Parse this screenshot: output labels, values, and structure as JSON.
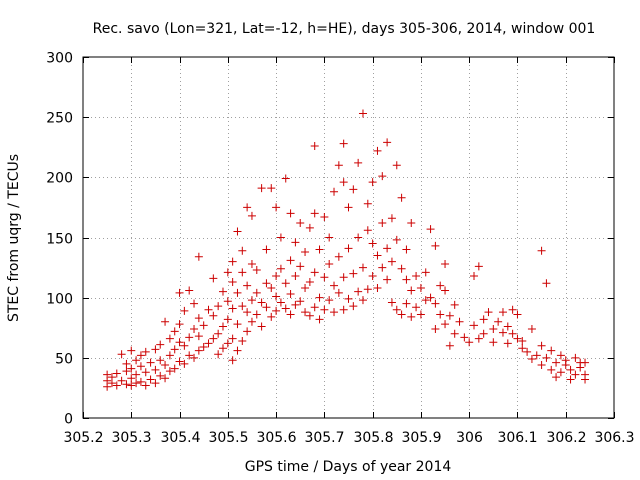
{
  "chart_data": {
    "type": "scatter",
    "title": "Rec. savo (Lon=321, Lat=-12, h=HE), days 305-306, 2014, window 001",
    "xlabel": "GPS time / Days of year 2014",
    "ylabel": "STEC from uqrg / TECUs",
    "xlim": [
      305.2,
      306.3
    ],
    "ylim": [
      0,
      300
    ],
    "x_ticks": [
      305.2,
      305.3,
      305.4,
      305.5,
      305.6,
      305.7,
      305.8,
      305.9,
      306,
      306.1,
      306.2,
      306.3
    ],
    "x_tick_labels": [
      "305.2",
      "305.3",
      "305.4",
      "305.5",
      "305.6",
      "305.7",
      "305.8",
      "305.9",
      "306",
      "306.1",
      "306.2",
      "306.3"
    ],
    "y_ticks": [
      0,
      50,
      100,
      150,
      200,
      250,
      300
    ],
    "y_tick_labels": [
      "0",
      "50",
      "100",
      "150",
      "200",
      "250",
      "300"
    ],
    "grid": true,
    "marker": "plus",
    "color": "#cc0000",
    "series": [
      {
        "points": [
          [
            305.25,
            26
          ],
          [
            305.25,
            31
          ],
          [
            305.25,
            36
          ],
          [
            305.26,
            29
          ],
          [
            305.26,
            34
          ],
          [
            305.27,
            27
          ],
          [
            305.27,
            37
          ],
          [
            305.28,
            53
          ],
          [
            305.28,
            31
          ],
          [
            305.29,
            39
          ],
          [
            305.29,
            28
          ],
          [
            305.29,
            45
          ],
          [
            305.3,
            27
          ],
          [
            305.3,
            33
          ],
          [
            305.3,
            41
          ],
          [
            305.3,
            56
          ],
          [
            305.31,
            29
          ],
          [
            305.31,
            36
          ],
          [
            305.31,
            48
          ],
          [
            305.32,
            30
          ],
          [
            305.32,
            43
          ],
          [
            305.32,
            52
          ],
          [
            305.33,
            27
          ],
          [
            305.33,
            38
          ],
          [
            305.33,
            55
          ],
          [
            305.34,
            32
          ],
          [
            305.34,
            46
          ],
          [
            305.35,
            29
          ],
          [
            305.35,
            40
          ],
          [
            305.35,
            57
          ],
          [
            305.36,
            35
          ],
          [
            305.36,
            48
          ],
          [
            305.36,
            61
          ],
          [
            305.37,
            33
          ],
          [
            305.37,
            44
          ],
          [
            305.37,
            80
          ],
          [
            305.38,
            39
          ],
          [
            305.38,
            52
          ],
          [
            305.38,
            66
          ],
          [
            305.39,
            41
          ],
          [
            305.39,
            57
          ],
          [
            305.39,
            72
          ],
          [
            305.4,
            47
          ],
          [
            305.4,
            63
          ],
          [
            305.4,
            78
          ],
          [
            305.4,
            104
          ],
          [
            305.41,
            45
          ],
          [
            305.41,
            60
          ],
          [
            305.41,
            89
          ],
          [
            305.42,
            52
          ],
          [
            305.42,
            67
          ],
          [
            305.42,
            106
          ],
          [
            305.43,
            50
          ],
          [
            305.43,
            74
          ],
          [
            305.43,
            95
          ],
          [
            305.44,
            56
          ],
          [
            305.44,
            68
          ],
          [
            305.44,
            83
          ],
          [
            305.44,
            134
          ],
          [
            305.45,
            59
          ],
          [
            305.45,
            77
          ],
          [
            305.46,
            62
          ],
          [
            305.46,
            90
          ],
          [
            305.47,
            66
          ],
          [
            305.47,
            85
          ],
          [
            305.47,
            116
          ],
          [
            305.48,
            53
          ],
          [
            305.48,
            70
          ],
          [
            305.48,
            93
          ],
          [
            305.49,
            58
          ],
          [
            305.49,
            76
          ],
          [
            305.49,
            105
          ],
          [
            305.5,
            62
          ],
          [
            305.5,
            82
          ],
          [
            305.5,
            97
          ],
          [
            305.5,
            121
          ],
          [
            305.51,
            48
          ],
          [
            305.51,
            66
          ],
          [
            305.51,
            91
          ],
          [
            305.51,
            113
          ],
          [
            305.51,
            130
          ],
          [
            305.52,
            56
          ],
          [
            305.52,
            78
          ],
          [
            305.52,
            104
          ],
          [
            305.52,
            155
          ],
          [
            305.53,
            64
          ],
          [
            305.53,
            93
          ],
          [
            305.53,
            121
          ],
          [
            305.53,
            139
          ],
          [
            305.54,
            72
          ],
          [
            305.54,
            88
          ],
          [
            305.54,
            110
          ],
          [
            305.54,
            175
          ],
          [
            305.55,
            80
          ],
          [
            305.55,
            98
          ],
          [
            305.55,
            128
          ],
          [
            305.55,
            168
          ],
          [
            305.56,
            86
          ],
          [
            305.56,
            104
          ],
          [
            305.56,
            123
          ],
          [
            305.57,
            76
          ],
          [
            305.57,
            96
          ],
          [
            305.57,
            191
          ],
          [
            305.58,
            92
          ],
          [
            305.58,
            112
          ],
          [
            305.58,
            140
          ],
          [
            305.59,
            84
          ],
          [
            305.59,
            108
          ],
          [
            305.59,
            191
          ],
          [
            305.6,
            89
          ],
          [
            305.6,
            101
          ],
          [
            305.6,
            118
          ],
          [
            305.6,
            175
          ],
          [
            305.61,
            96
          ],
          [
            305.61,
            124
          ],
          [
            305.61,
            150
          ],
          [
            305.62,
            91
          ],
          [
            305.62,
            112
          ],
          [
            305.62,
            199
          ],
          [
            305.63,
            86
          ],
          [
            305.63,
            103
          ],
          [
            305.63,
            131
          ],
          [
            305.63,
            170
          ],
          [
            305.64,
            94
          ],
          [
            305.64,
            118
          ],
          [
            305.64,
            146
          ],
          [
            305.65,
            97
          ],
          [
            305.65,
            126
          ],
          [
            305.65,
            162
          ],
          [
            305.66,
            88
          ],
          [
            305.66,
            108
          ],
          [
            305.66,
            138
          ],
          [
            305.67,
            85
          ],
          [
            305.67,
            113
          ],
          [
            305.67,
            158
          ],
          [
            305.68,
            92
          ],
          [
            305.68,
            121
          ],
          [
            305.68,
            170
          ],
          [
            305.68,
            226
          ],
          [
            305.69,
            82
          ],
          [
            305.69,
            100
          ],
          [
            305.69,
            140
          ],
          [
            305.7,
            90
          ],
          [
            305.7,
            117
          ],
          [
            305.7,
            167
          ],
          [
            305.71,
            98
          ],
          [
            305.71,
            128
          ],
          [
            305.71,
            150
          ],
          [
            305.72,
            88
          ],
          [
            305.72,
            110
          ],
          [
            305.72,
            188
          ],
          [
            305.73,
            104
          ],
          [
            305.73,
            134
          ],
          [
            305.73,
            210
          ],
          [
            305.74,
            90
          ],
          [
            305.74,
            117
          ],
          [
            305.74,
            196
          ],
          [
            305.74,
            228
          ],
          [
            305.75,
            99
          ],
          [
            305.75,
            141
          ],
          [
            305.75,
            175
          ],
          [
            305.76,
            93
          ],
          [
            305.76,
            120
          ],
          [
            305.76,
            190
          ],
          [
            305.77,
            105
          ],
          [
            305.77,
            150
          ],
          [
            305.77,
            212
          ],
          [
            305.78,
            98
          ],
          [
            305.78,
            125
          ],
          [
            305.78,
            253
          ],
          [
            305.79,
            107
          ],
          [
            305.79,
            156
          ],
          [
            305.79,
            178
          ],
          [
            305.8,
            118
          ],
          [
            305.8,
            145
          ],
          [
            305.8,
            196
          ],
          [
            305.81,
            108
          ],
          [
            305.81,
            135
          ],
          [
            305.81,
            222
          ],
          [
            305.82,
            125
          ],
          [
            305.82,
            162
          ],
          [
            305.82,
            201
          ],
          [
            305.83,
            115
          ],
          [
            305.83,
            141
          ],
          [
            305.83,
            229
          ],
          [
            305.84,
            96
          ],
          [
            305.84,
            130
          ],
          [
            305.84,
            166
          ],
          [
            305.85,
            90
          ],
          [
            305.85,
            148
          ],
          [
            305.85,
            210
          ],
          [
            305.86,
            86
          ],
          [
            305.86,
            124
          ],
          [
            305.86,
            183
          ],
          [
            305.87,
            95
          ],
          [
            305.87,
            115
          ],
          [
            305.87,
            140
          ],
          [
            305.88,
            84
          ],
          [
            305.88,
            106
          ],
          [
            305.88,
            162
          ],
          [
            305.89,
            92
          ],
          [
            305.89,
            118
          ],
          [
            305.9,
            86
          ],
          [
            305.9,
            108
          ],
          [
            305.91,
            98
          ],
          [
            305.91,
            121
          ],
          [
            305.92,
            100
          ],
          [
            305.92,
            157
          ],
          [
            305.93,
            74
          ],
          [
            305.93,
            95
          ],
          [
            305.93,
            143
          ],
          [
            305.94,
            86
          ],
          [
            305.94,
            110
          ],
          [
            305.95,
            78
          ],
          [
            305.95,
            106
          ],
          [
            305.95,
            128
          ],
          [
            305.96,
            60
          ],
          [
            305.96,
            85
          ],
          [
            305.97,
            70
          ],
          [
            305.97,
            94
          ],
          [
            305.98,
            80
          ],
          [
            305.99,
            67
          ],
          [
            306.0,
            63
          ],
          [
            306.01,
            77
          ],
          [
            306.01,
            118
          ],
          [
            306.02,
            66
          ],
          [
            306.02,
            126
          ],
          [
            306.03,
            82
          ],
          [
            306.03,
            70
          ],
          [
            306.04,
            88
          ],
          [
            306.05,
            74
          ],
          [
            306.05,
            63
          ],
          [
            306.06,
            80
          ],
          [
            306.07,
            71
          ],
          [
            306.07,
            88
          ],
          [
            306.08,
            62
          ],
          [
            306.08,
            76
          ],
          [
            306.09,
            70
          ],
          [
            306.09,
            90
          ],
          [
            306.1,
            66
          ],
          [
            306.1,
            86
          ],
          [
            306.11,
            58
          ],
          [
            306.11,
            64
          ],
          [
            306.12,
            55
          ],
          [
            306.13,
            49
          ],
          [
            306.13,
            74
          ],
          [
            306.14,
            52
          ],
          [
            306.15,
            44
          ],
          [
            306.15,
            60
          ],
          [
            306.15,
            139
          ],
          [
            306.16,
            50
          ],
          [
            306.16,
            112
          ],
          [
            306.17,
            40
          ],
          [
            306.17,
            56
          ],
          [
            306.18,
            46
          ],
          [
            306.18,
            34
          ],
          [
            306.19,
            38
          ],
          [
            306.19,
            52
          ],
          [
            306.2,
            44
          ],
          [
            306.2,
            48
          ],
          [
            306.21,
            40
          ],
          [
            306.21,
            32
          ],
          [
            306.22,
            36
          ],
          [
            306.22,
            50
          ],
          [
            306.23,
            42
          ],
          [
            306.23,
            46
          ],
          [
            306.24,
            32
          ],
          [
            306.24,
            36
          ],
          [
            306.24,
            46
          ]
        ]
      }
    ]
  }
}
